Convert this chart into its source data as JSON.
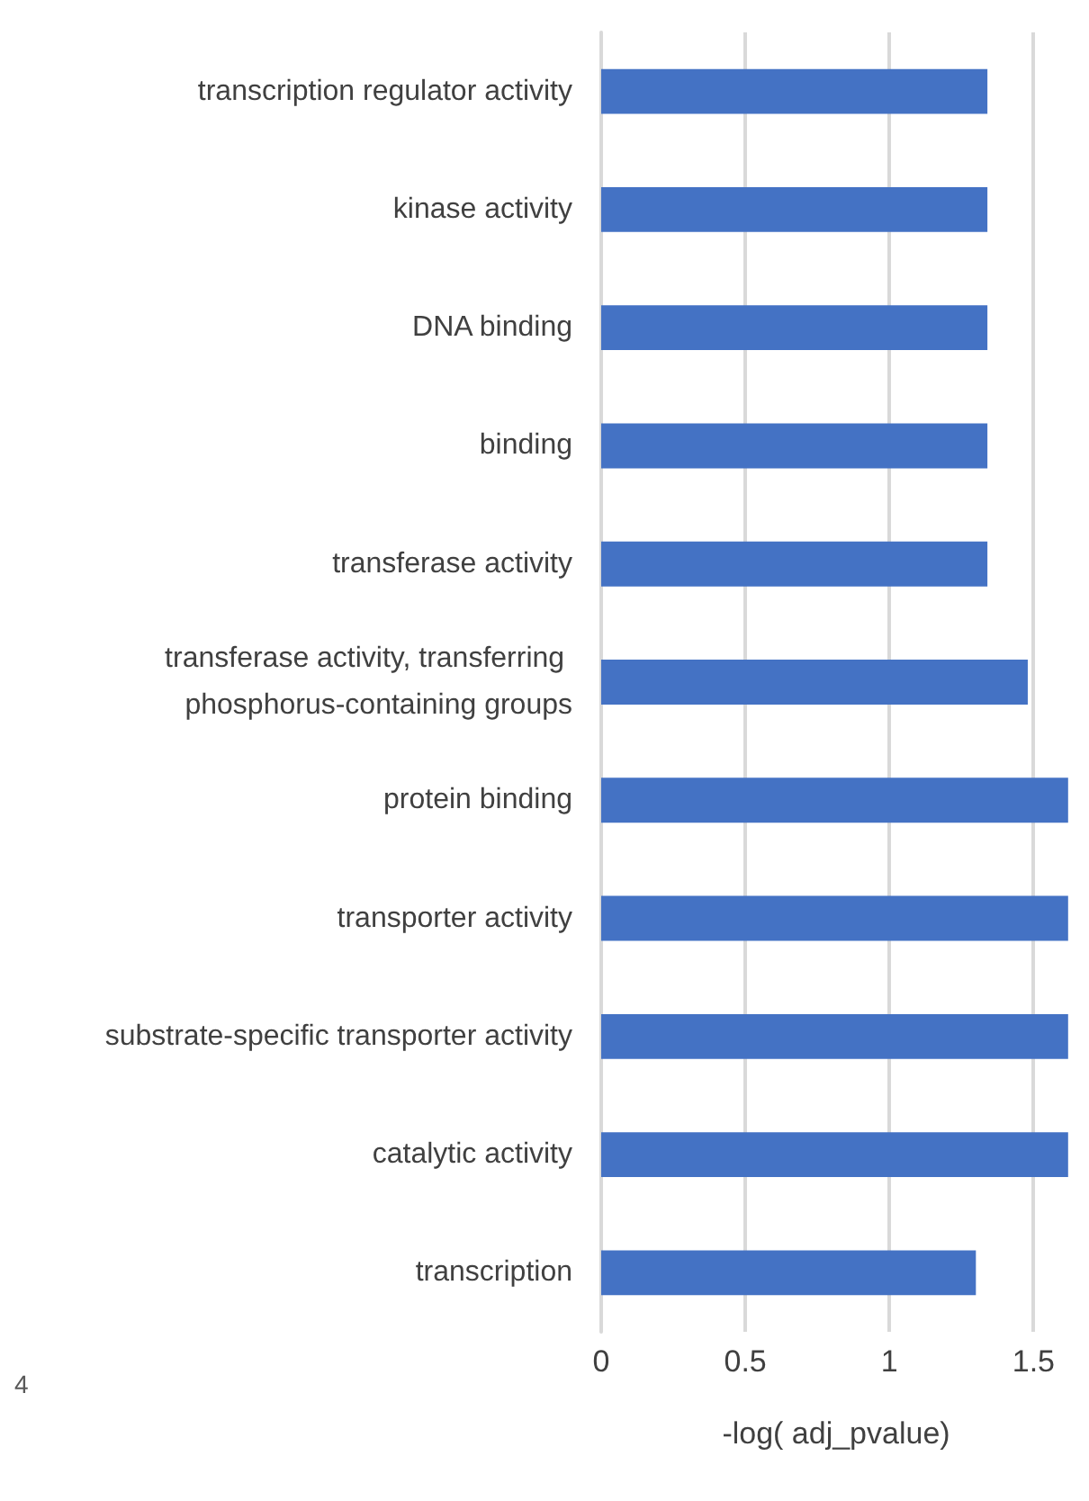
{
  "chart_data": {
    "type": "bar",
    "orientation": "horizontal",
    "xlabel": "-log( adj_pvalue)",
    "categories": [
      "transcription regulator activity",
      "kinase activity",
      "DNA binding",
      "binding",
      "transferase activity",
      "transferase activity, transferring phosphorus-containing groups",
      "protein binding",
      "transporter activity",
      "substrate-specific transporter activity",
      "catalytic activity",
      "transcription"
    ],
    "values": [
      1.34,
      1.34,
      1.34,
      1.34,
      1.34,
      1.48,
      1.62,
      1.62,
      1.62,
      1.62,
      1.3
    ],
    "color": "#4472c4",
    "xlim": [
      0,
      1.63
    ],
    "xticks": [
      0,
      0.5,
      1,
      1.5
    ],
    "grid": "x",
    "annotations": [
      "4"
    ]
  }
}
